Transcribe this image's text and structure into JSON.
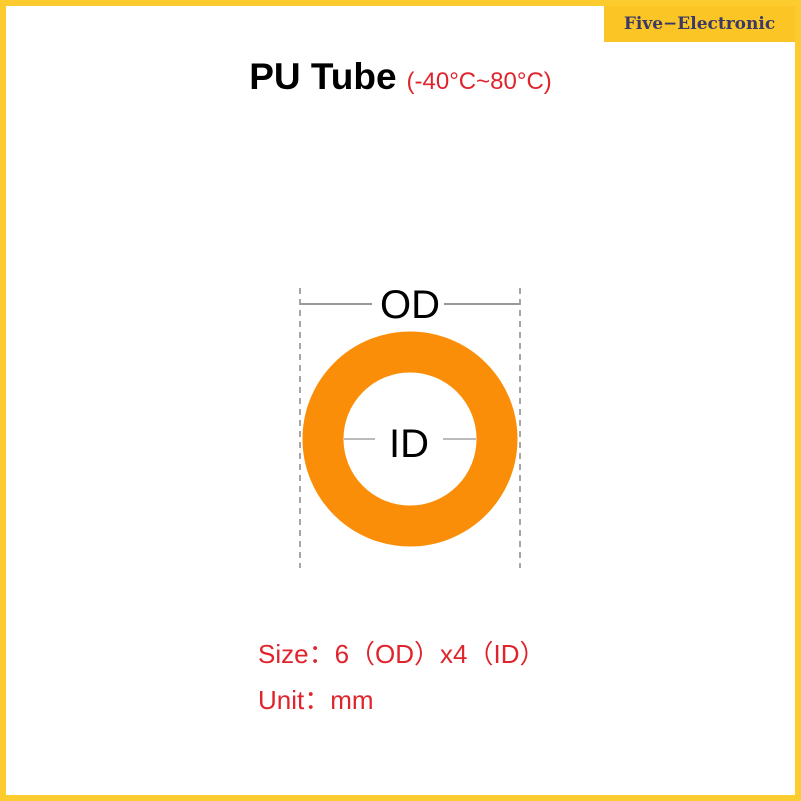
{
  "brand": "Five−Electronic",
  "title": {
    "main": "PU Tube",
    "temperature": "(-40°C~80°C)"
  },
  "diagram": {
    "od_label": "OD",
    "id_label": "ID",
    "ring_color": "#fb8e08"
  },
  "specs": {
    "size": "Size：6（OD）x4（ID）",
    "unit": "Unit：mm"
  },
  "colors": {
    "border": "#fccb2e",
    "accent_text": "#e0242c"
  }
}
